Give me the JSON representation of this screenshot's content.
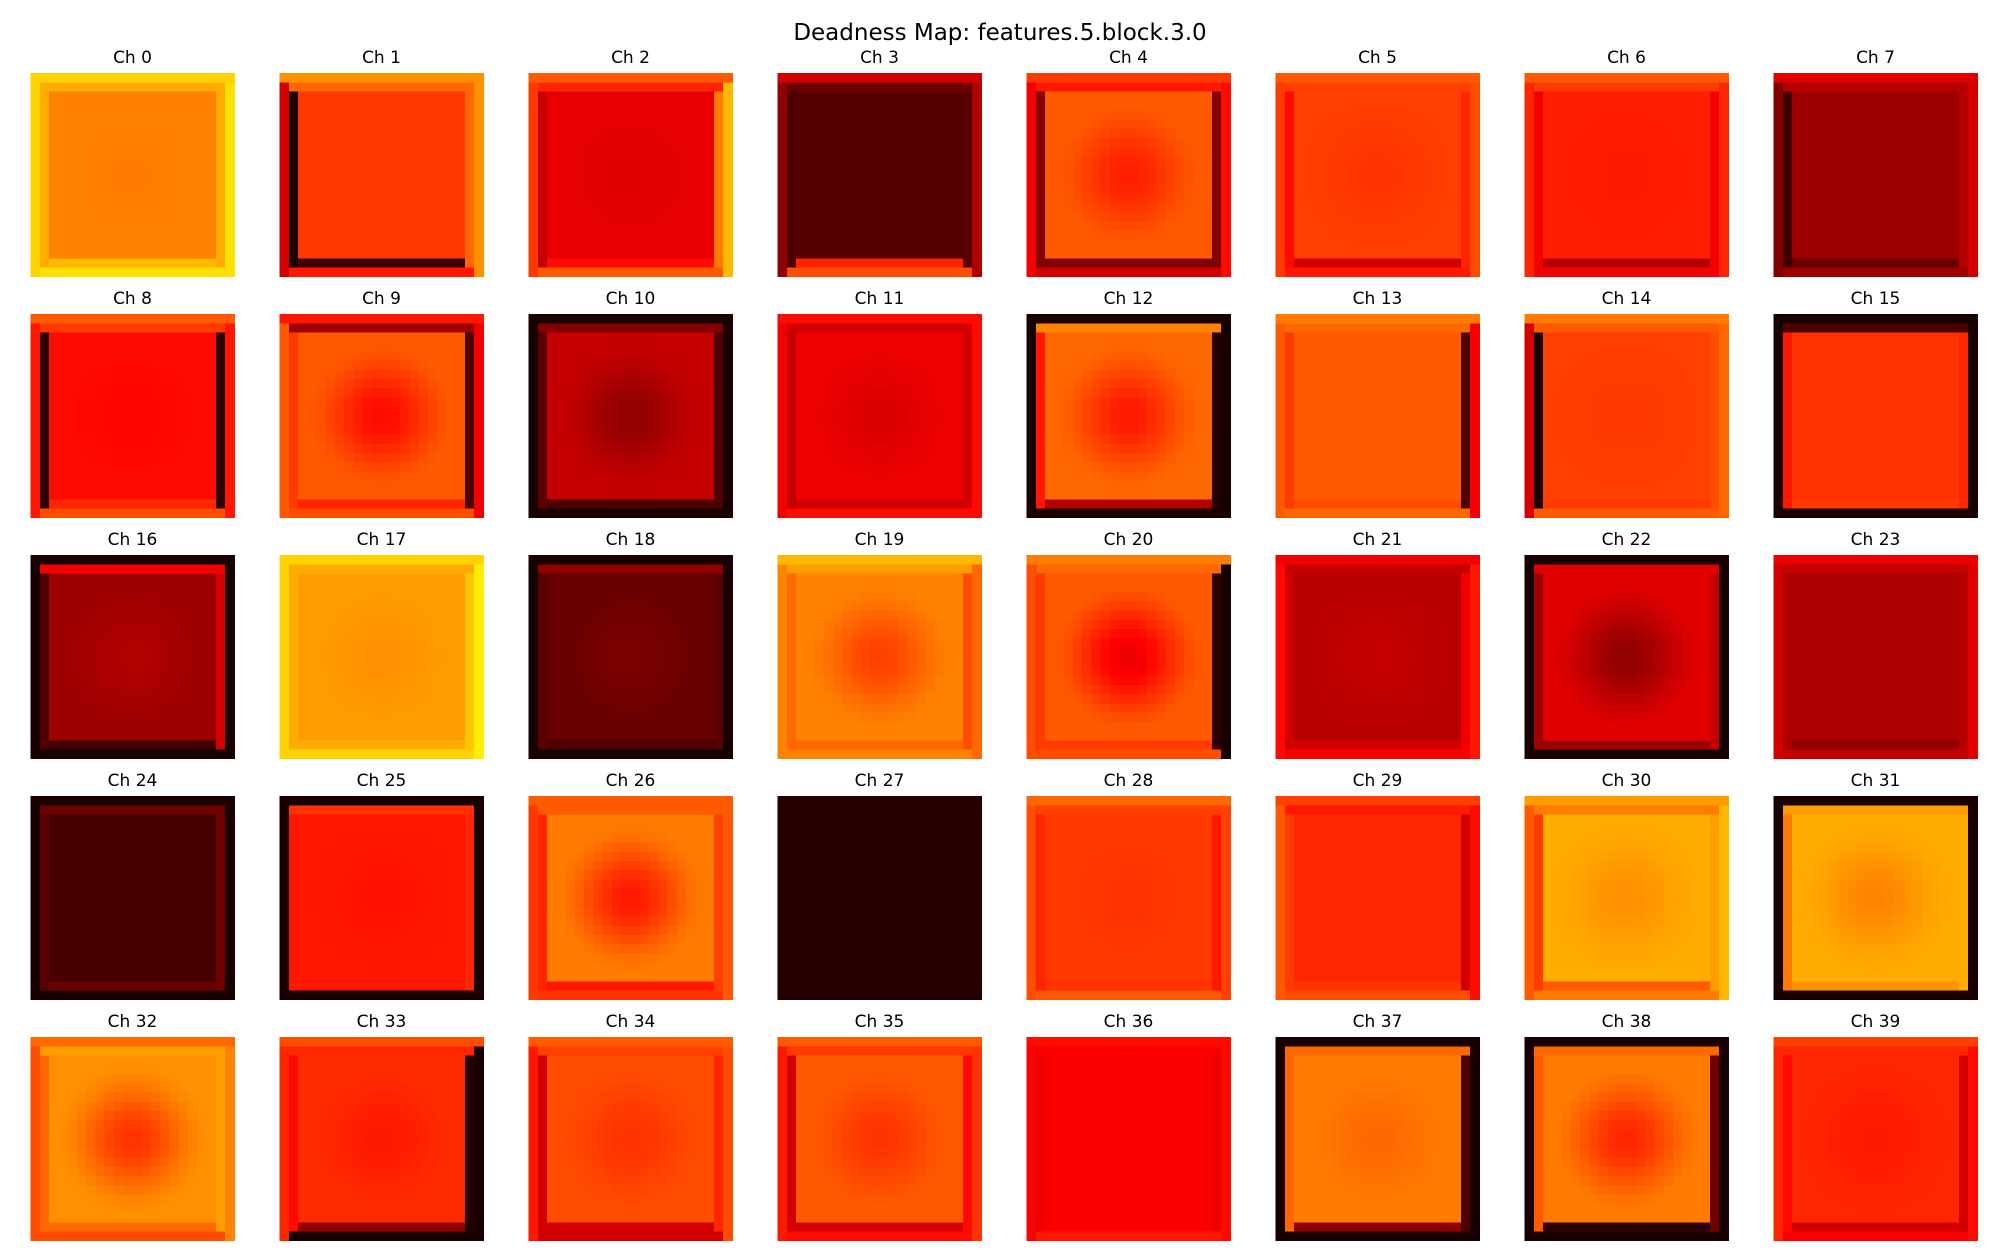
{
  "figure_title": "Deadness Map: features.5.block.3.0",
  "colormap": "hot",
  "colors": {
    "background": "#ffffff",
    "title_text": "#000000"
  },
  "chart_data": {
    "type": "heatmap",
    "title": "Deadness Map: features.5.block.3.0",
    "rows": 5,
    "cols": 8,
    "colormap": "hot",
    "axes": "off",
    "panels": [
      {
        "label": "Ch 0",
        "center": 0.55,
        "interior": 0.56,
        "frame": [
          0.62,
          0.62,
          0.62,
          0.64
        ],
        "trim": [
          0.68,
          0.68,
          0.7,
          0.7
        ]
      },
      {
        "label": "Ch 1",
        "center": 0.45,
        "interior": 0.45,
        "frame": [
          0.52,
          0.03,
          0.52,
          0.08
        ],
        "trim": [
          0.58,
          0.3,
          0.58,
          0.4
        ]
      },
      {
        "label": "Ch 2",
        "center": 0.32,
        "interior": 0.33,
        "frame": [
          0.42,
          0.28,
          0.55,
          0.38
        ],
        "trim": [
          0.5,
          0.45,
          0.64,
          0.5
        ]
      },
      {
        "label": "Ch 3",
        "center": 0.11,
        "interior": 0.11,
        "frame": [
          0.15,
          0.1,
          0.12,
          0.42
        ],
        "trim": [
          0.3,
          0.2,
          0.25,
          0.48
        ]
      },
      {
        "label": "Ch 4",
        "center": 0.41,
        "interior": 0.5,
        "frame": [
          0.4,
          0.18,
          0.18,
          0.18
        ],
        "trim": [
          0.45,
          0.35,
          0.38,
          0.3
        ]
      },
      {
        "label": "Ch 5",
        "center": 0.44,
        "interior": 0.46,
        "frame": [
          0.46,
          0.38,
          0.42,
          0.3
        ],
        "trim": [
          0.5,
          0.45,
          0.48,
          0.4
        ]
      },
      {
        "label": "Ch 6",
        "center": 0.4,
        "interior": 0.41,
        "frame": [
          0.45,
          0.35,
          0.35,
          0.25
        ],
        "trim": [
          0.5,
          0.42,
          0.42,
          0.35
        ]
      },
      {
        "label": "Ch 7",
        "center": 0.22,
        "interior": 0.22,
        "frame": [
          0.26,
          0.08,
          0.26,
          0.14
        ],
        "trim": [
          0.32,
          0.18,
          0.3,
          0.22
        ]
      },
      {
        "label": "Ch 8",
        "center": 0.37,
        "interior": 0.38,
        "frame": [
          0.45,
          0.05,
          0.05,
          0.42
        ],
        "trim": [
          0.5,
          0.4,
          0.4,
          0.48
        ]
      },
      {
        "label": "Ch 9",
        "center": 0.38,
        "interior": 0.5,
        "frame": [
          0.22,
          0.45,
          0.1,
          0.42
        ],
        "trim": [
          0.4,
          0.5,
          0.35,
          0.48
        ]
      },
      {
        "label": "Ch 10",
        "center": 0.2,
        "interior": 0.28,
        "frame": [
          0.18,
          0.12,
          0.1,
          0.1
        ],
        "trim": [
          0.02,
          0.02,
          0.02,
          0.02
        ]
      },
      {
        "label": "Ch 11",
        "center": 0.31,
        "interior": 0.34,
        "frame": [
          0.3,
          0.28,
          0.3,
          0.3
        ],
        "trim": [
          0.38,
          0.35,
          0.38,
          0.38
        ]
      },
      {
        "label": "Ch 12",
        "center": 0.4,
        "interior": 0.52,
        "frame": [
          0.56,
          0.4,
          0.04,
          0.25
        ],
        "trim": [
          0.02,
          0.02,
          0.02,
          0.02
        ]
      },
      {
        "label": "Ch 13",
        "center": 0.5,
        "interior": 0.5,
        "frame": [
          0.52,
          0.45,
          0.1,
          0.48
        ],
        "trim": [
          0.55,
          0.5,
          0.35,
          0.52
        ]
      },
      {
        "label": "Ch 14",
        "center": 0.45,
        "interior": 0.46,
        "frame": [
          0.5,
          0.02,
          0.48,
          0.45
        ],
        "trim": [
          0.55,
          0.3,
          0.52,
          0.5
        ]
      },
      {
        "label": "Ch 15",
        "center": 0.44,
        "interior": 0.44,
        "frame": [
          0.1,
          0.4,
          0.42,
          0.45
        ],
        "trim": [
          0.02,
          0.02,
          0.02,
          0.02
        ]
      },
      {
        "label": "Ch 16",
        "center": 0.25,
        "interior": 0.22,
        "frame": [
          0.35,
          0.1,
          0.3,
          0.08
        ],
        "trim": [
          0.02,
          0.02,
          0.02,
          0.02
        ]
      },
      {
        "label": "Ch 17",
        "center": 0.58,
        "interior": 0.6,
        "frame": [
          0.62,
          0.62,
          0.66,
          0.62
        ],
        "trim": [
          0.68,
          0.68,
          0.72,
          0.68
        ]
      },
      {
        "label": "Ch 18",
        "center": 0.17,
        "interior": 0.14,
        "frame": [
          0.2,
          0.12,
          0.12,
          0.1
        ],
        "trim": [
          0.02,
          0.02,
          0.02,
          0.02
        ]
      },
      {
        "label": "Ch 19",
        "center": 0.46,
        "interior": 0.56,
        "frame": [
          0.6,
          0.52,
          0.48,
          0.52
        ],
        "trim": [
          0.64,
          0.56,
          0.52,
          0.56
        ]
      },
      {
        "label": "Ch 20",
        "center": 0.34,
        "interior": 0.5,
        "frame": [
          0.52,
          0.45,
          0.05,
          0.45
        ],
        "trim": [
          0.55,
          0.48,
          0.02,
          0.48
        ]
      },
      {
        "label": "Ch 21",
        "center": 0.28,
        "interior": 0.26,
        "frame": [
          0.28,
          0.3,
          0.35,
          0.3
        ],
        "trim": [
          0.35,
          0.38,
          0.4,
          0.36
        ]
      },
      {
        "label": "Ch 22",
        "center": 0.2,
        "interior": 0.32,
        "frame": [
          0.32,
          0.22,
          0.28,
          0.22
        ],
        "trim": [
          0.02,
          0.02,
          0.02,
          0.02
        ]
      },
      {
        "label": "Ch 23",
        "center": 0.24,
        "interior": 0.24,
        "frame": [
          0.28,
          0.24,
          0.26,
          0.2
        ],
        "trim": [
          0.34,
          0.3,
          0.32,
          0.28
        ]
      },
      {
        "label": "Ch 24",
        "center": 0.09,
        "interior": 0.09,
        "frame": [
          0.15,
          0.12,
          0.15,
          0.14
        ],
        "trim": [
          0.02,
          0.02,
          0.02,
          0.02
        ]
      },
      {
        "label": "Ch 25",
        "center": 0.39,
        "interior": 0.4,
        "frame": [
          0.44,
          0.4,
          0.42,
          0.4
        ],
        "trim": [
          0.02,
          0.02,
          0.02,
          0.02
        ]
      },
      {
        "label": "Ch 26",
        "center": 0.4,
        "interior": 0.55,
        "frame": [
          0.5,
          0.42,
          0.46,
          0.4
        ],
        "trim": [
          0.5,
          0.45,
          0.5,
          0.44
        ]
      },
      {
        "label": "Ch 27",
        "center": 0.04,
        "interior": 0.04,
        "frame": [
          0.04,
          0.04,
          0.04,
          0.04
        ],
        "trim": [
          0.04,
          0.04,
          0.04,
          0.04
        ]
      },
      {
        "label": "Ch 28",
        "center": 0.44,
        "interior": 0.45,
        "frame": [
          0.46,
          0.42,
          0.4,
          0.44
        ],
        "trim": [
          0.52,
          0.48,
          0.46,
          0.5
        ]
      },
      {
        "label": "Ch 29",
        "center": 0.42,
        "interior": 0.42,
        "frame": [
          0.4,
          0.45,
          0.3,
          0.44
        ],
        "trim": [
          0.46,
          0.5,
          0.38,
          0.48
        ]
      },
      {
        "label": "Ch 30",
        "center": 0.58,
        "interior": 0.62,
        "frame": [
          0.55,
          0.45,
          0.6,
          0.5
        ],
        "trim": [
          0.6,
          0.5,
          0.64,
          0.55
        ]
      },
      {
        "label": "Ch 31",
        "center": 0.56,
        "interior": 0.62,
        "frame": [
          0.6,
          0.55,
          0.62,
          0.58
        ],
        "trim": [
          0.02,
          0.02,
          0.02,
          0.02
        ]
      },
      {
        "label": "Ch 32",
        "center": 0.44,
        "interior": 0.58,
        "frame": [
          0.6,
          0.52,
          0.6,
          0.52
        ],
        "trim": [
          0.52,
          0.48,
          0.56,
          0.48
        ]
      },
      {
        "label": "Ch 33",
        "center": 0.4,
        "interior": 0.43,
        "frame": [
          0.42,
          0.38,
          0.04,
          0.2
        ],
        "trim": [
          0.48,
          0.42,
          0.02,
          0.02
        ]
      },
      {
        "label": "Ch 34",
        "center": 0.44,
        "interior": 0.48,
        "frame": [
          0.46,
          0.3,
          0.42,
          0.3
        ],
        "trim": [
          0.5,
          0.4,
          0.48,
          0.3
        ]
      },
      {
        "label": "Ch 35",
        "center": 0.44,
        "interior": 0.5,
        "frame": [
          0.45,
          0.3,
          0.38,
          0.3
        ],
        "trim": [
          0.5,
          0.4,
          0.44,
          0.38
        ]
      },
      {
        "label": "Ch 36",
        "center": 0.36,
        "interior": 0.36,
        "frame": [
          0.36,
          0.34,
          0.34,
          0.36
        ],
        "trim": [
          0.38,
          0.36,
          0.38,
          0.4
        ]
      },
      {
        "label": "Ch 37",
        "center": 0.52,
        "interior": 0.55,
        "frame": [
          0.52,
          0.52,
          0.1,
          0.2
        ],
        "trim": [
          0.02,
          0.02,
          0.02,
          0.02
        ]
      },
      {
        "label": "Ch 38",
        "center": 0.42,
        "interior": 0.55,
        "frame": [
          0.52,
          0.5,
          0.15,
          0.05
        ],
        "trim": [
          0.02,
          0.02,
          0.02,
          0.02
        ]
      },
      {
        "label": "Ch 39",
        "center": 0.4,
        "interior": 0.42,
        "frame": [
          0.42,
          0.38,
          0.3,
          0.3
        ],
        "trim": [
          0.46,
          0.42,
          0.38,
          0.36
        ]
      }
    ]
  }
}
